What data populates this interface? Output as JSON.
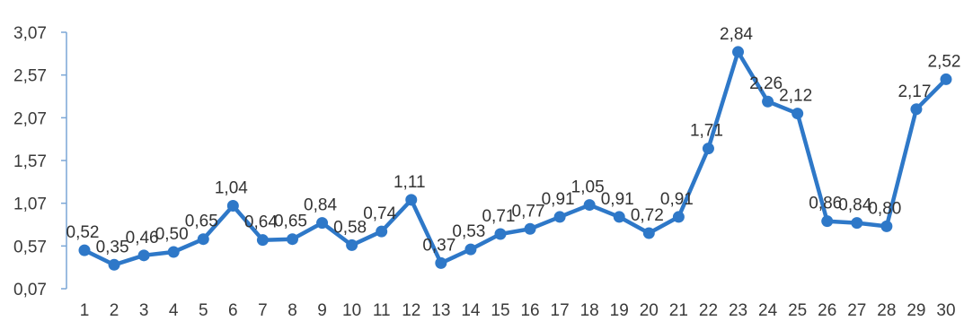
{
  "chart_data": {
    "type": "line",
    "title": "",
    "xlabel": "",
    "ylabel": "",
    "x": [
      1,
      2,
      3,
      4,
      5,
      6,
      7,
      8,
      9,
      10,
      11,
      12,
      13,
      14,
      15,
      16,
      17,
      18,
      19,
      20,
      21,
      22,
      23,
      24,
      25,
      26,
      27,
      28,
      29,
      30
    ],
    "x_tick_labels": [
      "1",
      "2",
      "3",
      "4",
      "5",
      "6",
      "7",
      "8",
      "9",
      "10",
      "11",
      "12",
      "13",
      "14",
      "15",
      "16",
      "17",
      "18",
      "19",
      "20",
      "21",
      "22",
      "23",
      "24",
      "25",
      "26",
      "27",
      "28",
      "29",
      "30"
    ],
    "series": [
      {
        "values": [
          0.52,
          0.35,
          0.46,
          0.5,
          0.65,
          1.04,
          0.64,
          0.65,
          0.84,
          0.58,
          0.74,
          1.11,
          0.37,
          0.53,
          0.71,
          0.77,
          0.91,
          1.05,
          0.91,
          0.72,
          0.91,
          1.71,
          2.84,
          2.26,
          2.12,
          0.86,
          0.84,
          0.8,
          2.17,
          2.52
        ],
        "labels": [
          "0,52",
          "0,35",
          "0,46",
          "0,50",
          "0,65",
          "1,04",
          "0,64",
          "0,65",
          "0,84",
          "0,58",
          "0,74",
          "1,11",
          "0,37",
          "0,53",
          "0,71",
          "0,77",
          "0,91",
          "1,05",
          "0,91",
          "0,72",
          "0,91",
          "1,71",
          "2,84",
          "2,26",
          "2,12",
          "0,86",
          "0,84",
          "0,80",
          "2,17",
          "2,52"
        ]
      }
    ],
    "y_ticks": [
      0.07,
      0.57,
      1.07,
      1.57,
      2.07,
      2.57,
      3.07
    ],
    "y_tick_labels": [
      "0,07",
      "0,57",
      "1,07",
      "1,57",
      "2,07",
      "2,57",
      "3,07"
    ],
    "ylim": [
      0.07,
      3.07
    ],
    "grid": false,
    "legend": "none",
    "colors": {
      "line": "#2e78c8",
      "marker": "#2e78c8",
      "axis": "#7aa6d6"
    }
  }
}
